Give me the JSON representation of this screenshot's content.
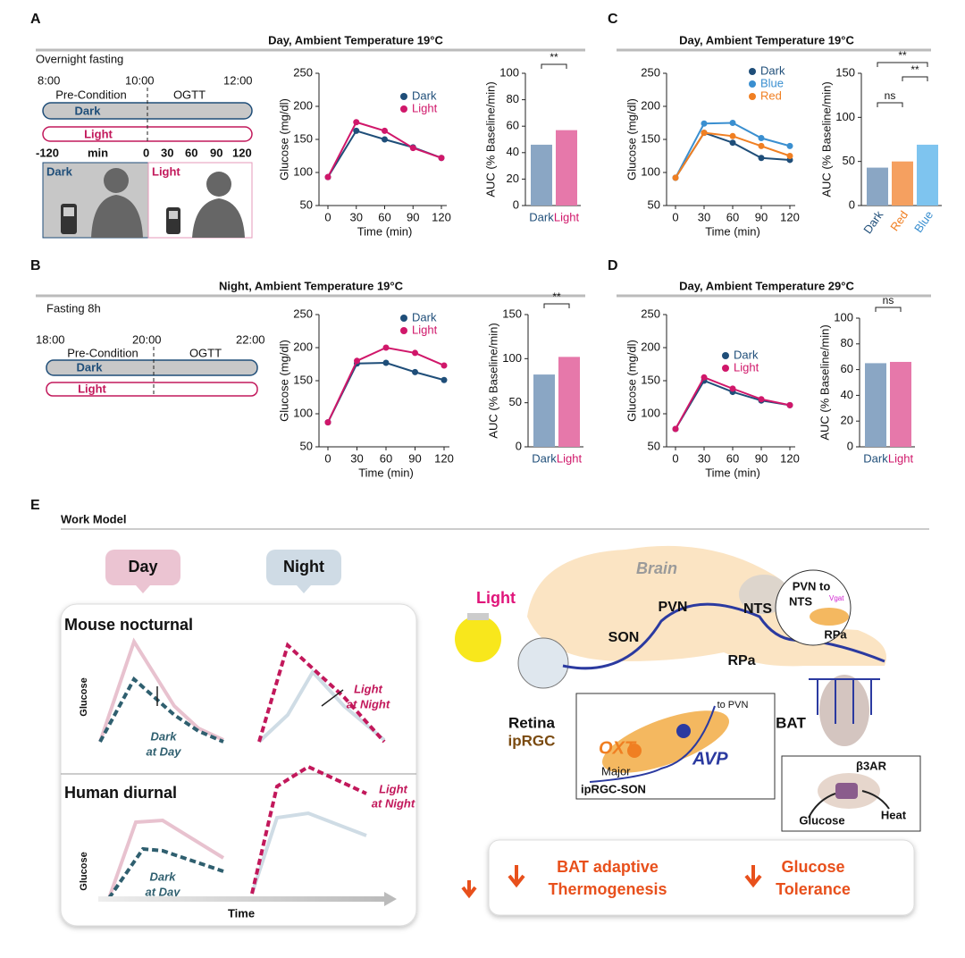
{
  "chart_data": [
    {
      "type": "line",
      "ylabel": "Glucose (mg/dl)",
      "xlabel": "Time (min)",
      "x": [
        0,
        30,
        60,
        90,
        120
      ],
      "xlim": [
        0,
        120
      ],
      "xticks": [
        0,
        30,
        60,
        90,
        120
      ],
      "ylim": [
        50,
        250
      ],
      "yticks": [
        50,
        100,
        150,
        200,
        250
      ],
      "series": [
        {
          "name": "Dark",
          "color": "#1f4e79",
          "values": [
            93,
            163,
            150,
            138,
            122
          ]
        },
        {
          "name": "Light",
          "color": "#d0176a",
          "values": [
            93,
            176,
            163,
            137,
            122
          ]
        }
      ]
    },
    {
      "type": "bar",
      "ylabel": "AUC (% Baseline/min)",
      "categories": [
        "Dark",
        "Light"
      ],
      "values": [
        46,
        57
      ],
      "colors": [
        "#8aa6c4",
        "#e678aa"
      ],
      "label_colors": [
        "#1f4e79",
        "#d0176a"
      ],
      "ylim": [
        0,
        100
      ],
      "yticks": [
        0,
        20,
        40,
        60,
        80,
        100
      ],
      "annotations": [
        "**"
      ]
    },
    {
      "type": "line",
      "ylabel": "Glucose (mg/dl)",
      "xlabel": "Time (min)",
      "x": [
        0,
        30,
        60,
        90,
        120
      ],
      "xlim": [
        0,
        120
      ],
      "xticks": [
        0,
        30,
        60,
        90,
        120
      ],
      "ylim": [
        50,
        250
      ],
      "yticks": [
        50,
        100,
        150,
        200,
        250
      ],
      "series": [
        {
          "name": "Dark",
          "color": "#1f4e79",
          "values": [
            87,
            176,
            177,
            163,
            151
          ]
        },
        {
          "name": "Light",
          "color": "#d0176a",
          "values": [
            87,
            180,
            200,
            192,
            173
          ]
        }
      ]
    },
    {
      "type": "bar",
      "ylabel": "AUC (% Baseline/min)",
      "categories": [
        "Dark",
        "Light"
      ],
      "values": [
        82,
        102
      ],
      "colors": [
        "#8aa6c4",
        "#e678aa"
      ],
      "label_colors": [
        "#1f4e79",
        "#d0176a"
      ],
      "ylim": [
        0,
        150
      ],
      "yticks": [
        0,
        50,
        100,
        150
      ],
      "annotations": [
        "**"
      ]
    },
    {
      "type": "line",
      "ylabel": "Glucose (mg/dl)",
      "xlabel": "Time (min)",
      "x": [
        0,
        30,
        60,
        90,
        120
      ],
      "xlim": [
        0,
        120
      ],
      "xticks": [
        0,
        30,
        60,
        90,
        120
      ],
      "ylim": [
        50,
        250
      ],
      "yticks": [
        50,
        100,
        150,
        200,
        250
      ],
      "series": [
        {
          "name": "Dark",
          "color": "#1f4e79",
          "values": [
            92,
            160,
            145,
            122,
            119
          ]
        },
        {
          "name": "Blue",
          "color": "#3a8fd0",
          "values": [
            92,
            174,
            175,
            152,
            140
          ]
        },
        {
          "name": "Red",
          "color": "#f07f22",
          "values": [
            92,
            160,
            155,
            140,
            125
          ]
        }
      ]
    },
    {
      "type": "bar",
      "ylabel": "AUC (% Baseline/min)",
      "categories": [
        "Dark",
        "Red",
        "Blue"
      ],
      "values": [
        43,
        50,
        69
      ],
      "colors": [
        "#8aa6c4",
        "#f5a060",
        "#7ec4ef"
      ],
      "label_colors": [
        "#1f4e79",
        "#f07f22",
        "#3a8fd0"
      ],
      "ylim": [
        0,
        150
      ],
      "yticks": [
        0,
        50,
        100,
        150
      ],
      "annotations": [
        "ns",
        "**",
        "**"
      ]
    },
    {
      "type": "line",
      "ylabel": "Glucose (mg/dl)",
      "xlabel": "Time (min)",
      "x": [
        0,
        30,
        60,
        90,
        120
      ],
      "xlim": [
        0,
        120
      ],
      "xticks": [
        0,
        30,
        60,
        90,
        120
      ],
      "ylim": [
        50,
        250
      ],
      "yticks": [
        50,
        100,
        150,
        200,
        250
      ],
      "series": [
        {
          "name": "Dark",
          "color": "#1f4e79",
          "values": [
            77,
            150,
            133,
            120,
            113
          ]
        },
        {
          "name": "Light",
          "color": "#d0176a",
          "values": [
            77,
            155,
            138,
            122,
            113
          ]
        }
      ]
    },
    {
      "type": "bar",
      "ylabel": "AUC (% Baseline/min)",
      "categories": [
        "Dark",
        "Light"
      ],
      "values": [
        65,
        66
      ],
      "colors": [
        "#8aa6c4",
        "#e678aa"
      ],
      "label_colors": [
        "#1f4e79",
        "#d0176a"
      ],
      "ylim": [
        0,
        100
      ],
      "yticks": [
        0,
        20,
        40,
        60,
        80,
        100
      ],
      "annotations": [
        "ns"
      ]
    }
  ],
  "figure": {
    "panel_labels": [
      "A",
      "B",
      "C",
      "D",
      "E"
    ],
    "titles": [
      "Day, Ambient Temperature 19°C",
      "Night, Ambient Temperature 19°C",
      "Day, Ambient Temperature 19°C",
      "Day, Ambient Temperature 29°C"
    ],
    "timeline_a": {
      "note": "Overnight fasting",
      "times": [
        "8:00",
        "10:00",
        "12:00"
      ],
      "phases": [
        "Pre-Condition",
        "OGTT"
      ],
      "bars": [
        "Dark",
        "Light"
      ],
      "ticks": [
        "-120",
        "min",
        "0",
        "30",
        "60",
        "90",
        "120"
      ],
      "photo": [
        "Dark",
        "Light"
      ]
    },
    "timeline_b": {
      "note": "Fasting 8h",
      "times": [
        "18:00",
        "20:00",
        "22:00"
      ],
      "phases": [
        "Pre-Condition",
        "OGTT"
      ],
      "bars": [
        "Dark",
        "Light"
      ]
    },
    "model": {
      "title": "Work Model",
      "bubbles": [
        "Day",
        "Night"
      ],
      "mouse": {
        "title": "Mouse nocturnal",
        "ylabel": "Glucose",
        "light": [
          "Light",
          "at Night"
        ],
        "dark": [
          "Dark",
          "at Day"
        ]
      },
      "human": {
        "title": "Human diurnal",
        "ylabel": "Glucose",
        "light": [
          "Light",
          "at Night"
        ],
        "dark": [
          "Dark",
          "at Day"
        ],
        "xlabel": "Time"
      },
      "brain": {
        "light": "Light",
        "brain": "Brain",
        "pvn": "PVN",
        "nts": "NTS",
        "son": "SON",
        "rpa": "RPa",
        "inset": [
          "PVN to",
          "NTS",
          "Vgat",
          "RPa"
        ],
        "retina": [
          "Retina",
          "ipRGC"
        ],
        "bat": "BAT",
        "son_inset": [
          "to PVN",
          "OXT",
          "AVP",
          "Major",
          "ipRGC-SON"
        ],
        "bat_inset": [
          "β3AR",
          "Glucose",
          "Heat"
        ]
      },
      "outcomes": [
        [
          "BAT adaptive",
          "Thermogenesis"
        ],
        [
          "Glucose",
          "Tolerance"
        ]
      ]
    }
  }
}
